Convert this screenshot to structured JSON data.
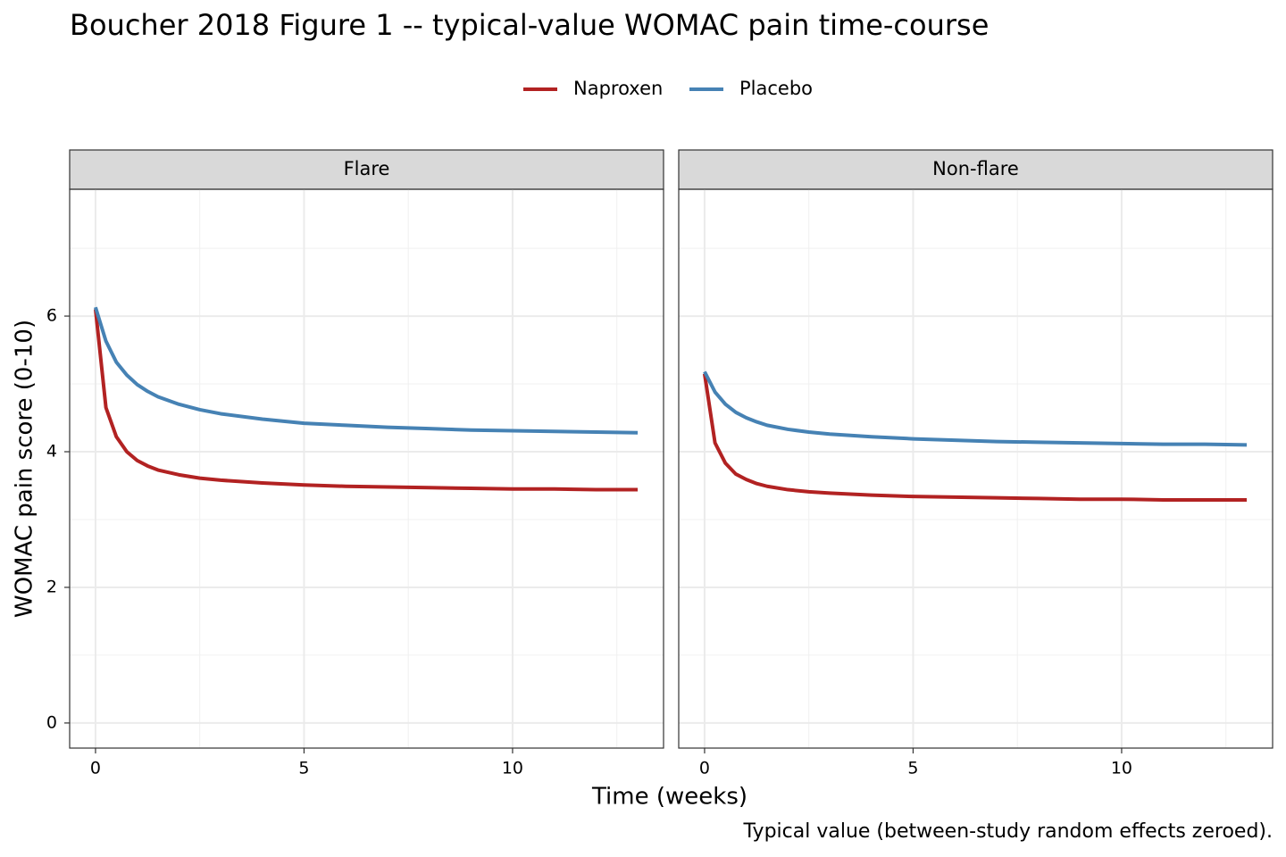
{
  "chart_data": {
    "type": "line",
    "title": "Boucher 2018 Figure 1 -- typical-value WOMAC pain time-course",
    "x_label": "Time (weeks)",
    "y_label": "WOMAC pain score (0-10)",
    "caption": "Typical value (between-study random effects zeroed).",
    "legend_position": "top",
    "grid": true,
    "xlim": [
      -0.62,
      13.62
    ],
    "ylim": [
      -0.37,
      7.87
    ],
    "xticks": [
      0,
      5,
      10
    ],
    "yticks": [
      0,
      2,
      4,
      6
    ],
    "minor_xticks": [
      2.5,
      7.5,
      12.5
    ],
    "minor_yticks": [
      1,
      3,
      5,
      7
    ],
    "x": [
      0,
      0.25,
      0.5,
      0.75,
      1,
      1.25,
      1.5,
      2,
      2.5,
      3,
      4,
      5,
      6,
      7,
      8,
      9,
      10,
      11,
      12,
      13
    ],
    "series": [
      {
        "name": "Naproxen",
        "color": "#b22222"
      },
      {
        "name": "Placebo",
        "color": "#4682b4"
      }
    ],
    "panels": [
      {
        "label": "Flare",
        "series": [
          {
            "values": [
              6.1,
              4.65,
              4.22,
              4.0,
              3.87,
              3.79,
              3.73,
              3.66,
              3.61,
              3.58,
              3.54,
              3.51,
              3.49,
              3.48,
              3.47,
              3.46,
              3.45,
              3.45,
              3.44,
              3.44
            ]
          },
          {
            "values": [
              6.13,
              5.63,
              5.32,
              5.13,
              4.99,
              4.89,
              4.81,
              4.7,
              4.62,
              4.56,
              4.48,
              4.42,
              4.39,
              4.36,
              4.34,
              4.32,
              4.31,
              4.3,
              4.29,
              4.28
            ]
          }
        ]
      },
      {
        "label": "Non-flare",
        "series": [
          {
            "values": [
              5.15,
              4.13,
              3.83,
              3.67,
              3.59,
              3.53,
              3.49,
              3.44,
              3.41,
              3.39,
              3.36,
              3.34,
              3.33,
              3.32,
              3.31,
              3.3,
              3.3,
              3.29,
              3.29,
              3.29
            ]
          },
          {
            "values": [
              5.18,
              4.88,
              4.7,
              4.58,
              4.5,
              4.44,
              4.39,
              4.33,
              4.29,
              4.26,
              4.22,
              4.19,
              4.17,
              4.15,
              4.14,
              4.13,
              4.12,
              4.11,
              4.11,
              4.1
            ]
          }
        ]
      }
    ]
  }
}
